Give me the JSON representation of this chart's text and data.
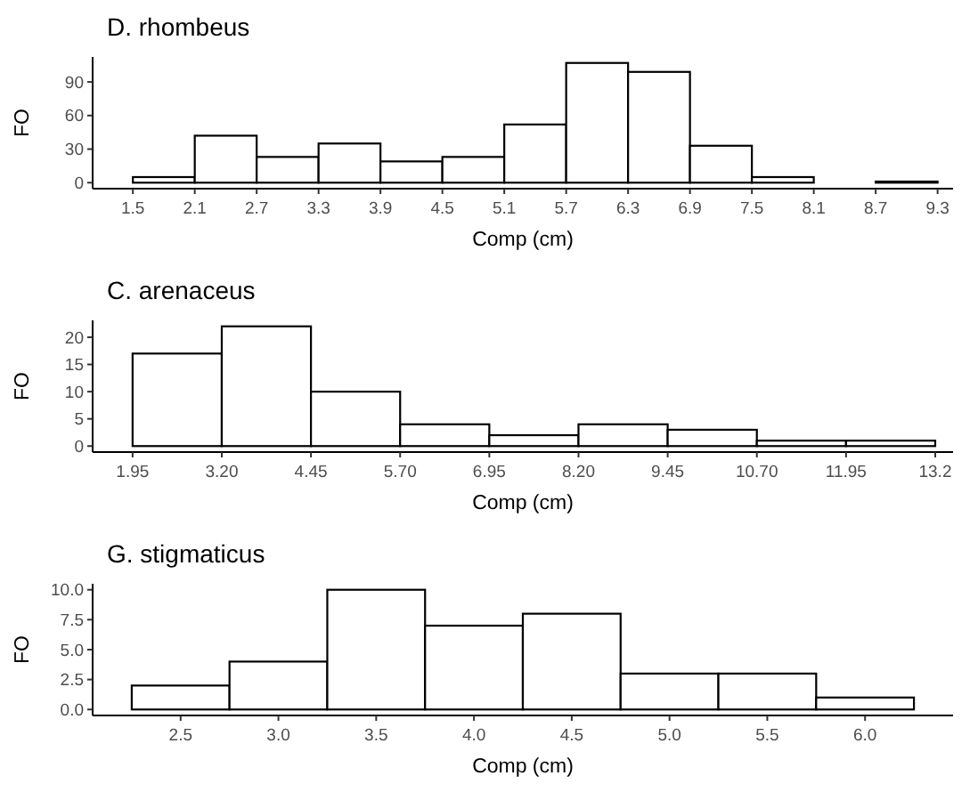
{
  "chart_data": [
    {
      "type": "histogram",
      "title": "D. rhombeus",
      "xlabel": "Comp (cm)",
      "ylabel": "FO",
      "color": "#ffffff",
      "bins": [
        1.5,
        2.1,
        2.7,
        3.3,
        3.9,
        4.5,
        5.1,
        5.7,
        6.3,
        6.9,
        7.5,
        8.1,
        8.7,
        9.3
      ],
      "values": [
        5,
        42,
        23,
        35,
        19,
        23,
        52,
        107,
        99,
        33,
        5,
        0,
        1
      ],
      "xlim": [
        1.11,
        9.45
      ],
      "ylim": [
        -5.35,
        112.35
      ],
      "xticks": [
        1.5,
        2.1,
        2.7,
        3.3,
        3.9,
        4.5,
        5.1,
        5.7,
        6.3,
        6.9,
        7.5,
        8.1,
        8.7,
        9.3
      ],
      "yticks": [
        0,
        30,
        60,
        90
      ],
      "grid": false
    },
    {
      "type": "histogram",
      "title": "C. arenaceus",
      "xlabel": "Comp (cm)",
      "ylabel": "FO",
      "color": "#ffffff",
      "bins": [
        1.95,
        3.2,
        4.45,
        5.7,
        6.95,
        8.2,
        9.45,
        10.7,
        11.95,
        13.2
      ],
      "values": [
        17,
        22,
        10,
        4,
        2,
        4,
        3,
        1,
        1
      ],
      "xlim": [
        1.39,
        13.45
      ],
      "ylim": [
        -1.1,
        23.1
      ],
      "xticks": [
        1.95,
        {
          "value": 3.2,
          "label": "3.20"
        },
        4.45,
        {
          "value": 5.7,
          "label": "5.70"
        },
        6.95,
        {
          "value": 8.2,
          "label": "8.20"
        },
        9.45,
        {
          "value": 10.7,
          "label": "10.70"
        },
        11.95,
        13.2
      ],
      "yticks": [
        0,
        5,
        10,
        15,
        20
      ],
      "grid": false
    },
    {
      "type": "histogram",
      "title": "G. stigmaticus",
      "xlabel": "Comp (cm)",
      "ylabel": "FO",
      "color": "#ffffff",
      "bins": [
        2.25,
        2.75,
        3.25,
        3.75,
        4.25,
        4.75,
        5.25,
        5.75,
        6.25
      ],
      "values": [
        2,
        4,
        10,
        7,
        8,
        3,
        3,
        1
      ],
      "xlim": [
        2.05,
        6.45
      ],
      "ylim": [
        -0.5,
        10.5
      ],
      "xticks": [
        2.5,
        {
          "value": 3,
          "label": "3.0"
        },
        3.5,
        {
          "value": 4,
          "label": "4.0"
        },
        4.5,
        {
          "value": 5,
          "label": "5.0"
        },
        5.5,
        {
          "value": 6,
          "label": "6.0"
        }
      ],
      "yticks": [
        {
          "value": 0,
          "label": "0.0"
        },
        2.5,
        {
          "value": 5,
          "label": "5.0"
        },
        7.5,
        {
          "value": 10,
          "label": "10.0"
        }
      ],
      "grid": false
    }
  ]
}
